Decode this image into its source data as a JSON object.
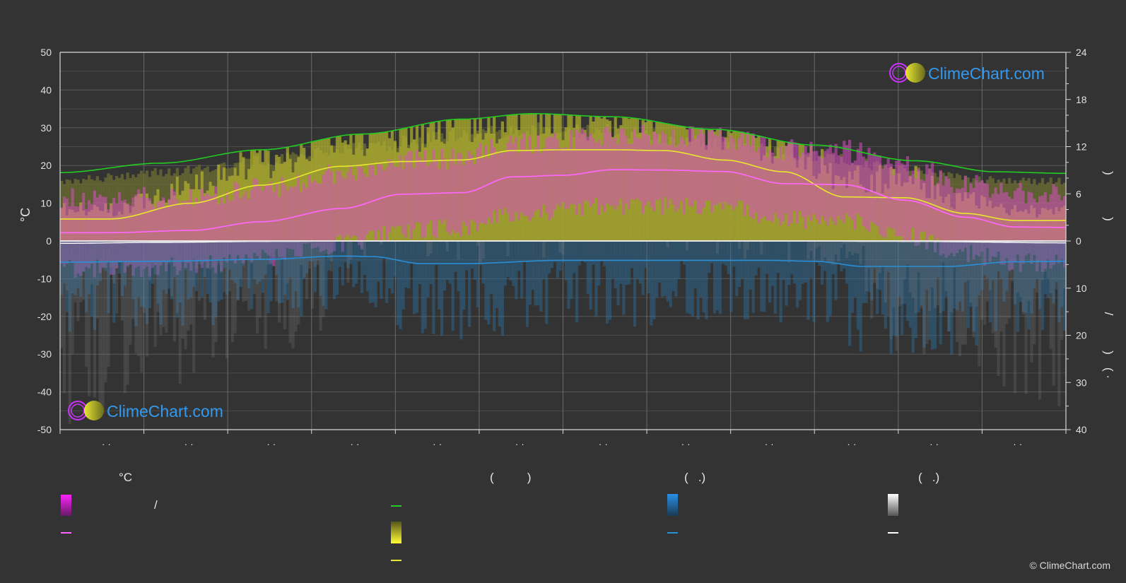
{
  "colors": {
    "background": "#333333",
    "grid": "#5a5a5a",
    "axis": "#d9d9d9",
    "daylight": "#22cc22",
    "sunshine_line": "#e8e830",
    "sunshine_fill": "#b5b52e",
    "temp_line": "#ff66ff",
    "temp_fill": "#d94fc3",
    "precip_line": "#2a8fd6",
    "precip_fill": "#2b6e9e",
    "snow_fill": "#8a8a8a",
    "brand": "#3399ee",
    "logo_ring": "#cc33ff",
    "logo_sun": "#cccc22"
  },
  "chart_data": {
    "type": "area",
    "left_axis": {
      "label": "°C",
      "ticks": [
        "50",
        "40",
        "30",
        "20",
        "10",
        "0",
        "-10",
        "-20",
        "-30",
        "-40",
        "-50"
      ],
      "ylim": [
        -50,
        50
      ]
    },
    "right_axis_top": {
      "ticks": [
        "24",
        "18",
        "12",
        "6",
        "0"
      ],
      "ylim": [
        0,
        24
      ]
    },
    "right_axis_bottom": {
      "ticks": [
        "0",
        "10",
        "20",
        "30",
        "40"
      ],
      "ylim": [
        0,
        40
      ]
    },
    "right_axis_fragments": [
      ")",
      ")",
      "/",
      ")",
      "( ·"
    ],
    "x_tick_labels": [
      "· ·",
      "· ·",
      "· ·",
      "· ·",
      "· ·",
      "· ·",
      "· ·",
      "· ·",
      "· ·",
      "· ·",
      "· ·",
      "· ·"
    ],
    "month_mid_fraction": [
      0.046,
      0.128,
      0.21,
      0.293,
      0.375,
      0.457,
      0.54,
      0.622,
      0.705,
      0.787,
      0.869,
      0.952
    ],
    "series": [
      {
        "key": "daylight",
        "unit": "h",
        "axis": "right_top",
        "x": [
          0,
          0.1,
          0.2,
          0.3,
          0.4,
          0.47,
          0.55,
          0.65,
          0.75,
          0.85,
          0.93,
          1
        ],
        "values": [
          8.7,
          9.9,
          11.6,
          13.6,
          15.5,
          16.2,
          15.8,
          14.2,
          12.2,
          10.2,
          8.8,
          8.6
        ]
      },
      {
        "key": "sunshine",
        "unit": "h",
        "axis": "right_top",
        "x": [
          0,
          0.05,
          0.13,
          0.2,
          0.28,
          0.34,
          0.4,
          0.45,
          0.5,
          0.55,
          0.6,
          0.66,
          0.72,
          0.78,
          0.84,
          0.9,
          0.95,
          1
        ],
        "values": [
          2.8,
          2.8,
          4.8,
          7.1,
          9.5,
          10.1,
          10.3,
          11.5,
          11.6,
          11.6,
          11.5,
          10.3,
          8.8,
          5.6,
          5.5,
          3.5,
          2.6,
          2.6
        ]
      },
      {
        "key": "avg_temp",
        "unit": "°C",
        "axis": "left",
        "x": [
          0,
          0.05,
          0.13,
          0.2,
          0.28,
          0.34,
          0.4,
          0.45,
          0.5,
          0.55,
          0.6,
          0.66,
          0.72,
          0.78,
          0.84,
          0.9,
          0.95,
          1
        ],
        "values": [
          2.2,
          2.2,
          2.8,
          5.1,
          8.6,
          12.4,
          12.8,
          17.0,
          17.4,
          18.9,
          18.8,
          18.4,
          15.2,
          14.9,
          10.8,
          6.3,
          3.7,
          3.6
        ]
      },
      {
        "key": "precipitation",
        "unit": "mm",
        "axis": "right_bottom",
        "x": [
          0,
          0.1,
          0.2,
          0.28,
          0.31,
          0.36,
          0.4,
          0.5,
          0.6,
          0.7,
          0.75,
          0.8,
          0.88,
          0.95,
          1
        ],
        "values": [
          4.5,
          4.3,
          3.9,
          3.2,
          3.3,
          4.8,
          4.8,
          4.1,
          4.1,
          4.1,
          4.3,
          5.4,
          5.4,
          4.4,
          4.3
        ]
      },
      {
        "key": "snow",
        "unit": "mm",
        "axis": "right_bottom",
        "x": [
          0,
          0.1,
          0.2,
          0.3,
          0.7,
          0.85,
          1
        ],
        "values": [
          0.5,
          0.3,
          0.1,
          0,
          0,
          0.1,
          0.4
        ]
      }
    ]
  },
  "legend": {
    "col1_header": "°C",
    "col1_range_label": "/",
    "col2_header": "(          )",
    "col3_header": "(   .)",
    "col4_header": "(   .)"
  },
  "brand": {
    "logo_text": "ClimeChart.com",
    "copyright": "© ClimeChart.com"
  }
}
